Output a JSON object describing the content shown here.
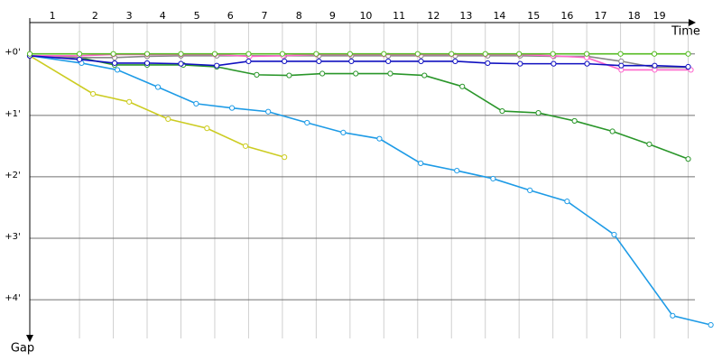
{
  "chart_data": {
    "type": "line",
    "x_label": "Time",
    "y_label": "Gap",
    "xlim": [
      -0.47,
      20.0
    ],
    "ylim": [
      -0.51,
      4.63
    ],
    "xticks": [
      {
        "value": 0.2,
        "label": "1"
      },
      {
        "value": 1.46,
        "label": "2"
      },
      {
        "value": 2.47,
        "label": "3"
      },
      {
        "value": 3.46,
        "label": "4"
      },
      {
        "value": 4.47,
        "label": "5"
      },
      {
        "value": 5.46,
        "label": "6"
      },
      {
        "value": 6.47,
        "label": "7"
      },
      {
        "value": 7.49,
        "label": "8"
      },
      {
        "value": 8.48,
        "label": "9"
      },
      {
        "value": 9.47,
        "label": "10"
      },
      {
        "value": 10.45,
        "label": "11"
      },
      {
        "value": 11.47,
        "label": "12"
      },
      {
        "value": 12.43,
        "label": "13"
      },
      {
        "value": 13.42,
        "label": "14"
      },
      {
        "value": 14.43,
        "label": "15"
      },
      {
        "value": 15.42,
        "label": "16"
      },
      {
        "value": 16.41,
        "label": "17"
      },
      {
        "value": 17.4,
        "label": "18"
      },
      {
        "value": 18.15,
        "label": "19"
      }
    ],
    "xgrid": [
      1,
      2,
      3,
      4,
      5,
      6,
      7,
      8,
      9,
      10,
      11,
      12,
      13,
      14,
      15,
      16,
      17,
      18,
      19
    ],
    "yticks": [
      {
        "value": 0,
        "label": "+0'"
      },
      {
        "value": 1,
        "label": "+1'"
      },
      {
        "value": 2,
        "label": "+2'"
      },
      {
        "value": 3,
        "label": "+3'"
      },
      {
        "value": 4,
        "label": "+4'"
      }
    ],
    "grid": true,
    "series": [
      {
        "color": "#cccc22",
        "x": [
          -0.47,
          1.4,
          2.47,
          3.62,
          4.77,
          5.91,
          7.06
        ],
        "values": [
          0.03,
          0.65,
          0.78,
          1.06,
          1.21,
          1.5,
          1.68
        ]
      },
      {
        "color": "#1e9be6",
        "x": [
          -0.47,
          1.06,
          2.12,
          3.32,
          4.45,
          5.51,
          6.58,
          7.73,
          8.8,
          9.87,
          11.09,
          12.16,
          13.23,
          14.32,
          15.42,
          16.81,
          18.54,
          19.67
        ],
        "values": [
          0.03,
          0.15,
          0.26,
          0.54,
          0.81,
          0.88,
          0.94,
          1.12,
          1.28,
          1.38,
          1.78,
          1.9,
          2.03,
          2.22,
          2.4,
          2.94,
          4.26,
          4.41
        ]
      },
      {
        "color": "#2a962a",
        "x": [
          -0.47,
          1,
          2.04,
          3,
          4.07,
          5.06,
          6.24,
          7.2,
          8.18,
          9.17,
          10.19,
          11.2,
          12.32,
          13.5,
          14.57,
          15.64,
          16.76,
          17.85,
          19.0
        ],
        "values": [
          0.03,
          0.06,
          0.18,
          0.18,
          0.18,
          0.21,
          0.34,
          0.35,
          0.32,
          0.32,
          0.32,
          0.35,
          0.53,
          0.93,
          0.96,
          1.09,
          1.26,
          1.47,
          1.71
        ]
      },
      {
        "color": "#888888",
        "x": [
          -0.47,
          1,
          2.04,
          3,
          4,
          5.06,
          6,
          7.06,
          8.08,
          9.04,
          10.13,
          11.1,
          12.11,
          13.07,
          14.03,
          15.02,
          16.01,
          17.02,
          18.01,
          19.0
        ],
        "values": [
          0.03,
          0.06,
          0.06,
          0.04,
          0.03,
          0.03,
          0.03,
          0.03,
          0.03,
          0.03,
          0.03,
          0.03,
          0.03,
          0.03,
          0.03,
          0.04,
          0.04,
          0.12,
          0.22,
          0.22
        ]
      },
      {
        "color": "#ff66cc",
        "x": [
          -0.47,
          1,
          2,
          3,
          4,
          5,
          6.03,
          7.02,
          8,
          9,
          10,
          11,
          12,
          13,
          14,
          15,
          16,
          17.02,
          18.01,
          19.08
        ],
        "values": [
          0.03,
          0.03,
          0.01,
          0.01,
          0.01,
          0.01,
          0.04,
          0.03,
          0.01,
          0.01,
          0.01,
          0.01,
          0.01,
          0.01,
          0.01,
          0.03,
          0.06,
          0.26,
          0.26,
          0.26
        ]
      },
      {
        "color": "#1010c0",
        "x": [
          -0.47,
          1,
          2.04,
          3,
          4,
          5.06,
          6,
          7.06,
          8.08,
          9.04,
          10.13,
          11.1,
          12.11,
          13.07,
          14.03,
          15.02,
          16.01,
          17.02,
          18.01,
          19.0
        ],
        "values": [
          0.03,
          0.09,
          0.15,
          0.15,
          0.16,
          0.19,
          0.12,
          0.12,
          0.12,
          0.12,
          0.12,
          0.12,
          0.12,
          0.15,
          0.16,
          0.16,
          0.16,
          0.19,
          0.19,
          0.21
        ]
      },
      {
        "color": "#55bb22",
        "x": [
          -0.47,
          1,
          2,
          3,
          4,
          5,
          6,
          7,
          8,
          9,
          10,
          11,
          12,
          13,
          14,
          15,
          16,
          17,
          18,
          19
        ],
        "values": [
          0.0,
          0.0,
          0.0,
          0.0,
          0.0,
          0.0,
          0.0,
          0.0,
          0.0,
          0.0,
          0.0,
          0.0,
          0.0,
          0.0,
          0.0,
          0.0,
          0.0,
          0.0,
          0.0,
          0.0
        ]
      }
    ]
  }
}
